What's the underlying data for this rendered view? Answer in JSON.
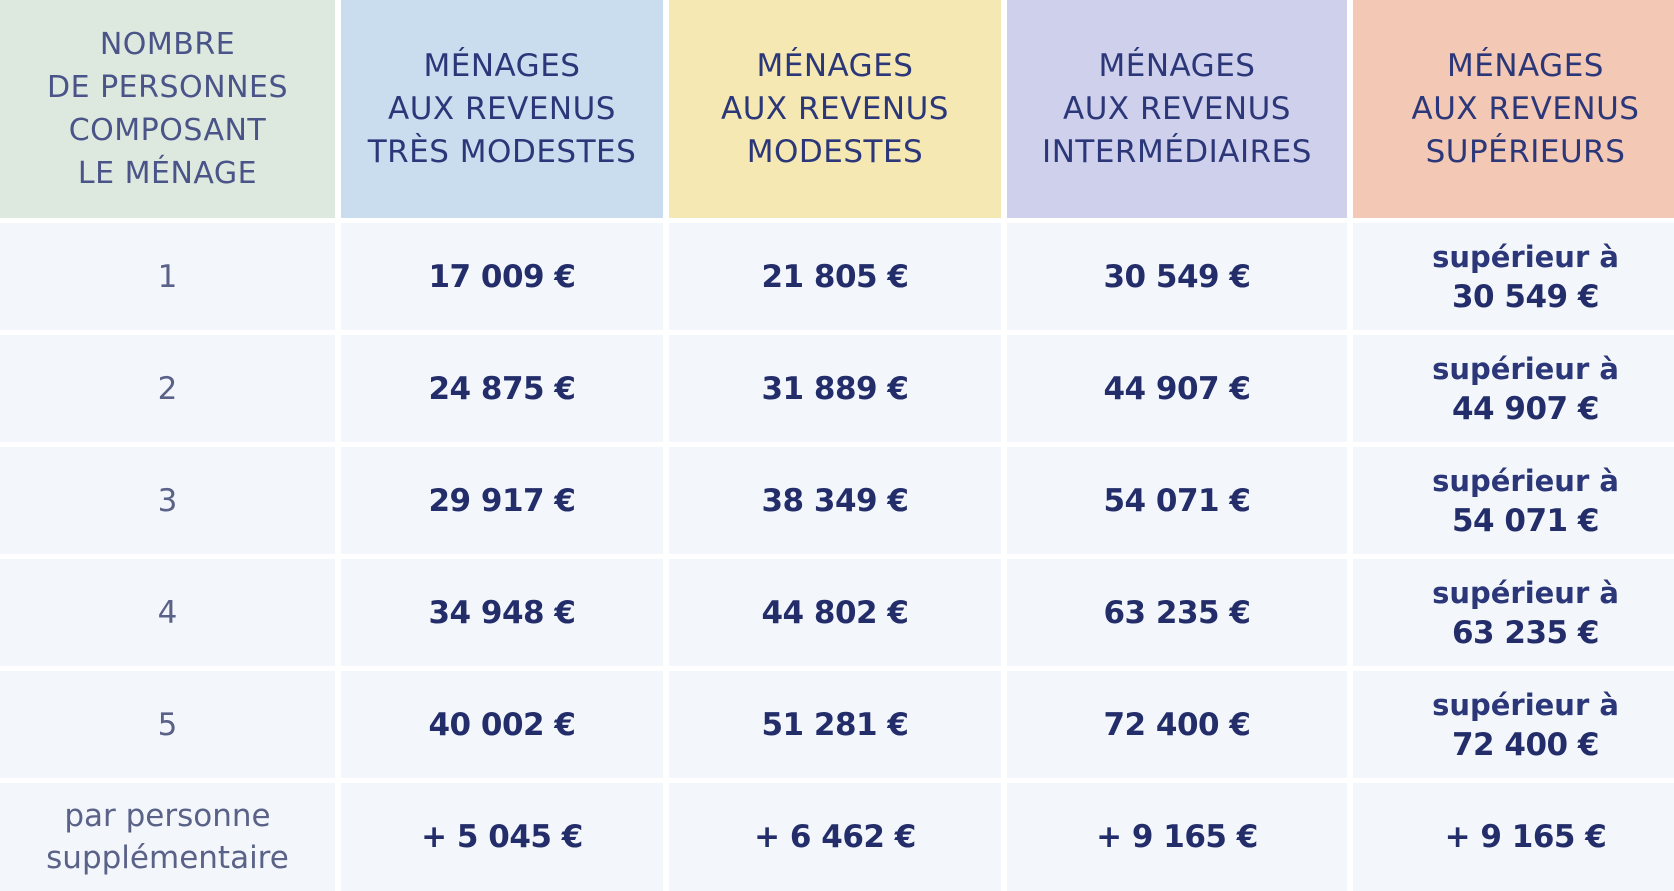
{
  "colors": {
    "header_first": "#dde9df",
    "header_tres_modestes": "#c9ddef",
    "header_modestes": "#f5e8b3",
    "header_intermediaires": "#cfd0eb",
    "header_superieurs": "#f3c8b5",
    "body_cell": "#f3f6fb",
    "text": "#232d6a"
  },
  "headers": [
    "NOMBRE\nDE PERSONNES\nCOMPOSANT\nLE MÉNAGE",
    "MÉNAGES\nAUX REVENUS\nTRÈS MODESTES",
    "MÉNAGES\nAUX REVENUS\nMODESTES",
    "MÉNAGES\nAUX REVENUS\nINTERMÉDIAIRES",
    "MÉNAGES\nAUX REVENUS\nSUPÉRIEURS"
  ],
  "rows": [
    {
      "persons": "1",
      "tres_modestes": "17 009 €",
      "modestes": "21 805 €",
      "intermediaires": "30 549 €",
      "superieurs_prefix": "supérieur à",
      "superieurs": "30 549 €"
    },
    {
      "persons": "2",
      "tres_modestes": "24 875 €",
      "modestes": "31 889 €",
      "intermediaires": "44 907 €",
      "superieurs_prefix": "supérieur à",
      "superieurs": "44 907 €"
    },
    {
      "persons": "3",
      "tres_modestes": "29 917 €",
      "modestes": "38 349 €",
      "intermediaires": "54 071 €",
      "superieurs_prefix": "supérieur à",
      "superieurs": "54 071 €"
    },
    {
      "persons": "4",
      "tres_modestes": "34 948 €",
      "modestes": "44 802 €",
      "intermediaires": "63 235 €",
      "superieurs_prefix": "supérieur à",
      "superieurs": "63 235 €"
    },
    {
      "persons": "5",
      "tres_modestes": "40 002 €",
      "modestes": "51 281 €",
      "intermediaires": "72 400 €",
      "superieurs_prefix": "supérieur à",
      "superieurs": "72 400 €"
    }
  ],
  "extra": {
    "label": "par personne\nsupplémentaire",
    "tres_modestes": "+ 5 045 €",
    "modestes": "+ 6 462 €",
    "intermediaires": "+ 9 165 €",
    "superieurs": "+ 9 165 €"
  }
}
